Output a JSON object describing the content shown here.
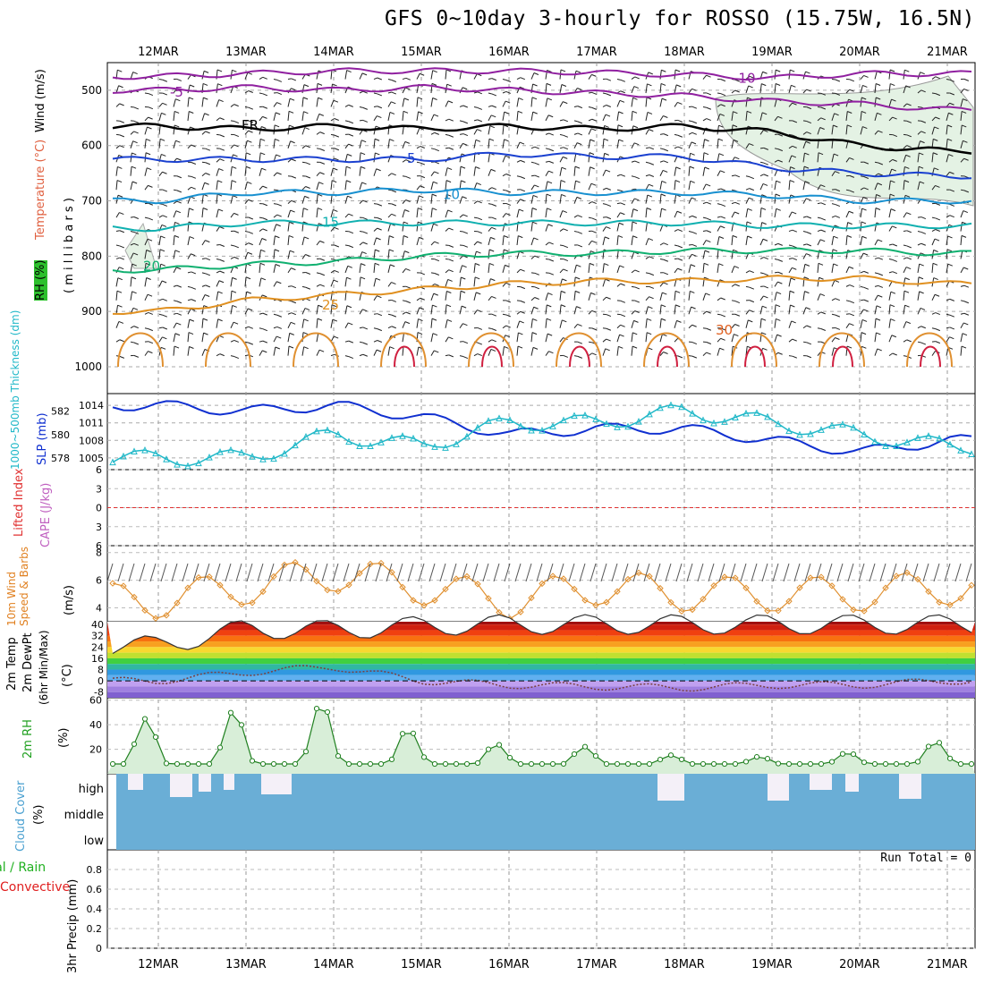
{
  "title": "GFS 0~10day 3-hourly for ROSSO (15.75W, 16.5N)",
  "run_total": "Run Total = 0",
  "labels": {
    "wind": "Wind (m/s)",
    "temperature": "Temperature (°C)",
    "rh_upper": "RH (%)",
    "millibars": "( m i l l i b a r s )",
    "thickness": "1000~500mb Thickness (dm)",
    "slp": "SLP (mb)",
    "lifted_index": "Lifted Index",
    "cape": "CAPE (J/kg)",
    "wind10": "10m Wind Speed & Barbs",
    "wind10_unit": "(m/s)",
    "temp2m": "2m Temp",
    "dewpt2m": "2m DewPt",
    "minmax": "(6hr Min/Max)",
    "temp_unit": "(°C)",
    "rh2m": "2m RH",
    "rh2m_unit": "(%)",
    "cloud": "Cloud Cover",
    "cloud_unit": "(%)",
    "precip_total": "Total / Rain",
    "precip_conv": "Convective",
    "precip": "3hr Precip (mm)",
    "cloud_high": "high",
    "cloud_middle": "middle",
    "cloud_low": "low"
  },
  "colors": {
    "thickness": "#20b8c8",
    "slp": "#1030d0",
    "wind10": "#e09030",
    "rh2m_line": "#208020",
    "rh2m_fill": "#8cd88c",
    "cloud": "#6aaed6",
    "cloud_gap": "#f4f0f8",
    "li_zero": "#e03030",
    "freezing": "#000000"
  },
  "chart_data": [
    {
      "panel": "upper-air",
      "type": "contour",
      "x": [
        "12MAR",
        "13MAR",
        "14MAR",
        "15MAR",
        "16MAR",
        "17MAR",
        "18MAR",
        "19MAR",
        "20MAR",
        "21MAR"
      ],
      "y_ticks": [
        500,
        600,
        700,
        800,
        900,
        1000
      ],
      "ylim": [
        450,
        1000
      ],
      "contour_labels": [
        {
          "label": "-10",
          "color": "#9020a0",
          "level": 480
        },
        {
          "label": "-5",
          "color": "#9020a0",
          "level": 505
        },
        {
          "label": "FR",
          "color": "#000000",
          "level": 565
        },
        {
          "label": "5",
          "color": "#1a40d0",
          "level": 625
        },
        {
          "label": "10",
          "color": "#1890d0",
          "level": 690
        },
        {
          "label": "15",
          "color": "#10b0b0",
          "level": 740
        },
        {
          "label": "20",
          "color": "#10b070",
          "level": 820
        },
        {
          "label": "25",
          "color": "#e09020",
          "level": 890
        },
        {
          "label": "30",
          "color": "#e06020",
          "level": 935
        }
      ],
      "contour_levels": [
        {
          "name": "-10",
          "color": "#9020a0",
          "y": [
            475,
            470,
            465,
            465,
            465,
            468,
            472,
            478,
            470,
            470
          ]
        },
        {
          "name": "-5",
          "color": "#9020a0",
          "y": [
            500,
            495,
            500,
            495,
            500,
            505,
            510,
            520,
            525,
            535
          ]
        },
        {
          "name": "FR",
          "color": "#000000",
          "y": [
            565,
            570,
            565,
            570,
            565,
            570,
            565,
            575,
            600,
            610
          ]
        },
        {
          "name": "5",
          "color": "#1a40d0",
          "y": [
            625,
            625,
            625,
            625,
            615,
            620,
            620,
            640,
            650,
            655
          ]
        },
        {
          "name": "10",
          "color": "#1890d0",
          "y": [
            700,
            685,
            685,
            680,
            685,
            685,
            685,
            690,
            700,
            700
          ]
        },
        {
          "name": "15",
          "color": "#10b0b0",
          "y": [
            750,
            740,
            740,
            740,
            740,
            740,
            740,
            745,
            745,
            745
          ]
        },
        {
          "name": "20",
          "color": "#10b070",
          "y": [
            825,
            815,
            810,
            800,
            795,
            795,
            790,
            790,
            790,
            795
          ]
        },
        {
          "name": "25",
          "color": "#e09020",
          "y": [
            900,
            880,
            870,
            860,
            850,
            845,
            845,
            840,
            840,
            850
          ]
        }
      ]
    },
    {
      "panel": "slp-thickness",
      "type": "line",
      "x": [
        "12MAR",
        "13MAR",
        "14MAR",
        "15MAR",
        "16MAR",
        "17MAR",
        "18MAR",
        "19MAR",
        "20MAR",
        "21MAR"
      ],
      "series": [
        {
          "name": "SLP (mb)",
          "axis": "right",
          "y": [
            1014,
            1013,
            1014,
            1012,
            1009,
            1010,
            1010,
            1008,
            1006,
            1008
          ]
        },
        {
          "name": "1000~500mb Thickness (dm)",
          "axis": "left",
          "y": [
            578,
            578,
            580,
            579,
            581,
            581,
            582,
            581,
            580,
            579
          ]
        }
      ],
      "y_left_ticks": [
        578,
        580,
        582
      ],
      "y_right_ticks": [
        1005,
        1008,
        1011,
        1014
      ]
    },
    {
      "panel": "lifted-index-cape",
      "type": "line",
      "y_ticks": [
        -6,
        -3,
        0,
        3,
        6
      ],
      "ylim": [
        -6,
        6
      ],
      "series": []
    },
    {
      "panel": "wind10",
      "type": "line",
      "x": [
        "12MAR",
        "13MAR",
        "14MAR",
        "15MAR",
        "16MAR",
        "17MAR",
        "18MAR",
        "19MAR",
        "20MAR",
        "21MAR"
      ],
      "y_ticks": [
        4,
        6,
        8
      ],
      "ylim": [
        3,
        8.5
      ],
      "series": [
        {
          "name": "10m Wind Speed",
          "y": [
            4.5,
            5.5,
            6.5,
            5.5,
            4.5,
            5.5,
            5,
            5,
            5,
            5.5
          ]
        }
      ]
    },
    {
      "panel": "temp2m",
      "type": "area",
      "x": [
        "12MAR",
        "13MAR",
        "14MAR",
        "15MAR",
        "16MAR",
        "17MAR",
        "18MAR",
        "19MAR",
        "20MAR",
        "21MAR"
      ],
      "y_ticks": [
        40,
        32,
        24,
        16,
        8,
        0,
        -8
      ],
      "ylim": [
        -12,
        42
      ],
      "series": [
        {
          "name": "2m Temp",
          "y": [
            25,
            37,
            36,
            39,
            40,
            40,
            40,
            40,
            40,
            40
          ]
        },
        {
          "name": "2m DewPt",
          "y": [
            0,
            6,
            10,
            0,
            -3,
            -4,
            -5,
            -3,
            -3,
            0
          ]
        }
      ]
    },
    {
      "panel": "rh2m",
      "type": "area",
      "x": [
        "12MAR",
        "13MAR",
        "14MAR",
        "15MAR",
        "16MAR",
        "17MAR",
        "18MAR",
        "19MAR",
        "20MAR",
        "21MAR"
      ],
      "y_ticks": [
        20,
        40,
        60
      ],
      "ylim": [
        0,
        62
      ],
      "series": [
        {
          "name": "2m RH",
          "y": [
            45,
            53,
            60,
            33,
            23,
            22,
            14,
            14,
            18,
            28
          ]
        }
      ]
    },
    {
      "panel": "cloud-cover",
      "type": "area",
      "levels": [
        "high",
        "middle",
        "low"
      ]
    },
    {
      "panel": "precip",
      "type": "bar",
      "y_ticks": [
        0,
        0.2,
        0.4,
        0.6,
        0.8
      ],
      "ylim": [
        0,
        1
      ],
      "series": []
    }
  ]
}
